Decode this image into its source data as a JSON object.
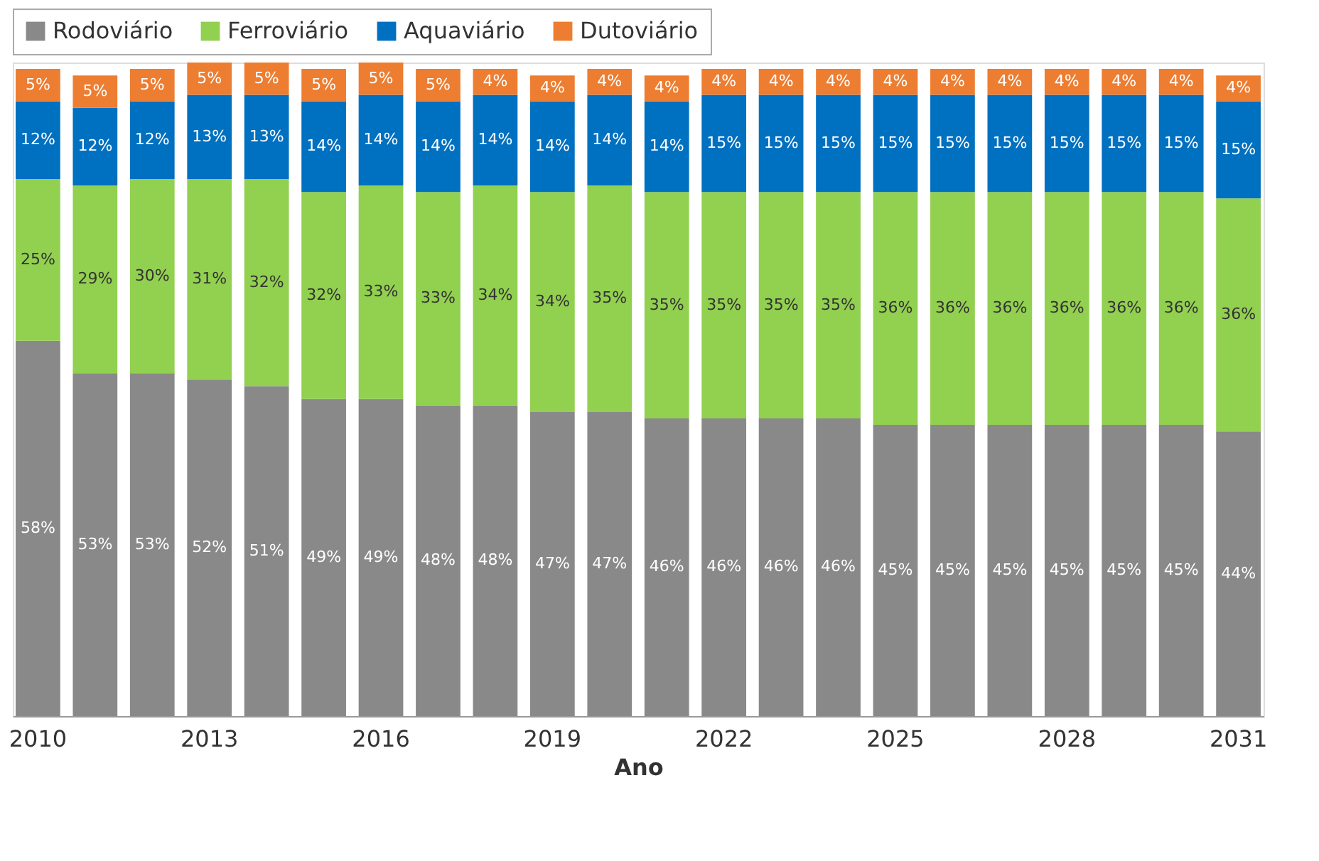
{
  "chart_data": {
    "type": "bar",
    "stacked": true,
    "xlabel": "Ano",
    "legend": "top",
    "categories": [
      "2010",
      null,
      null,
      "2013",
      null,
      null,
      "2016",
      null,
      null,
      "2019",
      null,
      null,
      "2022",
      null,
      null,
      "2025",
      null,
      null,
      "2028",
      null,
      null,
      "2031"
    ],
    "series": [
      {
        "name": "Rodoviário",
        "color": "#898989",
        "values": [
          58,
          53,
          53,
          52,
          51,
          49,
          49,
          48,
          48,
          47,
          47,
          46,
          46,
          46,
          46,
          45,
          45,
          45,
          45,
          45,
          45,
          44
        ],
        "value_labels": [
          "58%",
          "53%",
          "53%",
          "52%",
          "51%",
          "49%",
          "49%",
          "48%",
          "48%",
          "47%",
          "47%",
          "46%",
          "46%",
          "46%",
          "46%",
          "45%",
          "45%",
          "45%",
          "45%",
          "45%",
          "45%",
          "44%"
        ]
      },
      {
        "name": "Ferroviário",
        "color": "#92d050",
        "values": [
          25,
          29,
          30,
          31,
          32,
          32,
          33,
          33,
          34,
          34,
          35,
          35,
          35,
          35,
          35,
          36,
          36,
          36,
          36,
          36,
          36,
          36
        ],
        "value_labels": [
          "25%",
          "29%",
          "30%",
          "31%",
          "32%",
          "32%",
          "33%",
          "33%",
          "34%",
          "34%",
          "35%",
          "35%",
          "35%",
          "35%",
          "35%",
          "36%",
          "36%",
          "36%",
          "36%",
          "36%",
          "36%",
          "36%"
        ]
      },
      {
        "name": "Aquaviário",
        "color": "#0070c0",
        "values": [
          12,
          12,
          12,
          13,
          13,
          14,
          14,
          14,
          14,
          14,
          14,
          14,
          15,
          15,
          15,
          15,
          15,
          15,
          15,
          15,
          15,
          15
        ],
        "value_labels": [
          "12%",
          "12%",
          "12%",
          "13%",
          "13%",
          "14%",
          "14%",
          "14%",
          "14%",
          "14%",
          "14%",
          "14%",
          "15%",
          "15%",
          "15%",
          "15%",
          "15%",
          "15%",
          "15%",
          "15%",
          "15%",
          "15%"
        ]
      },
      {
        "name": "Dutoviário",
        "color": "#ed7d31",
        "values": [
          5,
          5,
          5,
          5,
          5,
          5,
          5,
          5,
          4,
          4,
          4,
          4,
          4,
          4,
          4,
          4,
          4,
          4,
          4,
          4,
          4,
          4
        ],
        "value_labels": [
          "5%",
          "5%",
          "5%",
          "5%",
          "5%",
          "5%",
          "5%",
          "5%",
          "4%",
          "4%",
          "4%",
          "4%",
          "4%",
          "4%",
          "4%",
          "4%",
          "4%",
          "4%",
          "4%",
          "4%",
          "4%",
          "4%"
        ]
      }
    ]
  }
}
